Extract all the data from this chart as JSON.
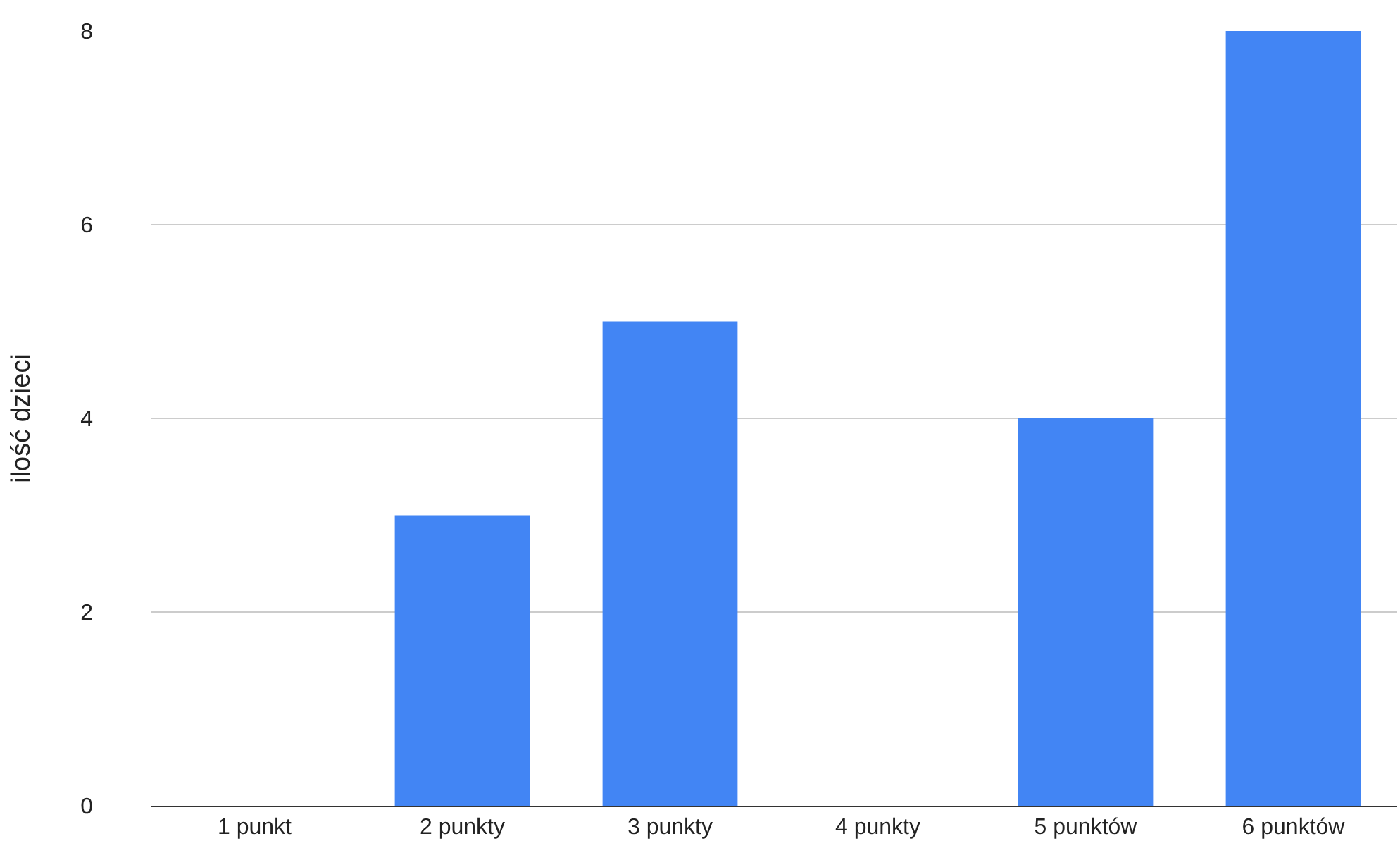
{
  "chart_data": {
    "type": "bar",
    "ylabel": "ilość dzieci",
    "categories": [
      "1 punkt",
      "2 punkty",
      "3 punkty",
      "4 punkty",
      "5 punktów",
      "6 punktów"
    ],
    "values": [
      0,
      3,
      5,
      0,
      4,
      8
    ],
    "color": "#4285f4",
    "ylim": [
      0,
      8
    ],
    "yticks": [
      0,
      2,
      4,
      6,
      8
    ],
    "grid": "y"
  }
}
